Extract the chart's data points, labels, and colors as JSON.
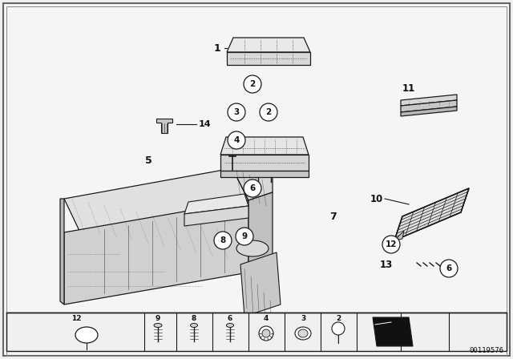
{
  "bg_color": "#f0f0f0",
  "inner_bg": "#f5f5f5",
  "lc": "#1a1a1a",
  "tc": "#111111",
  "part_id": "00119576",
  "figsize": [
    6.4,
    4.48
  ],
  "dpi": 100
}
